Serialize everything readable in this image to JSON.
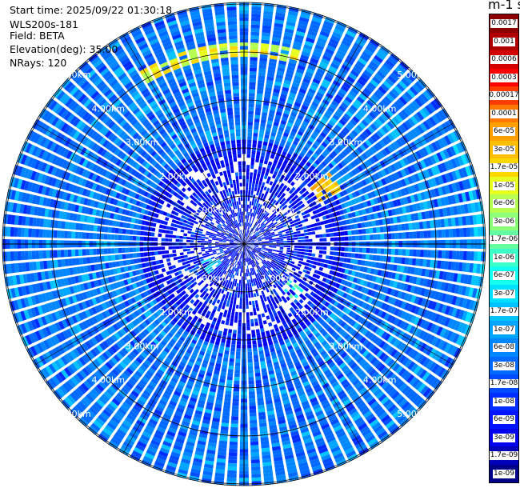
{
  "header": {
    "start_time": "Start time: 2025/09/22 01:30:18",
    "instrument": "WLS200s-181",
    "field": "Field: BETA",
    "elevation": "Elevation(deg): 35.00",
    "nrays": "NRays: 120"
  },
  "chart_data": {
    "type": "ppi-polar-heatmap",
    "field": "BETA",
    "elevation_deg": 35.0,
    "n_rays": 120,
    "max_range_km": 5.4,
    "range_rings_km": [
      1,
      2,
      3,
      4,
      5
    ],
    "range_ring_labels": [
      "1.00km",
      "2.00km",
      "3.00km",
      "4.00km",
      "5.00km"
    ],
    "colorbar": {
      "title": "m-1 sr-1",
      "labels": [
        "0.0017",
        "0.001",
        "0.0006",
        "0.0003",
        "0.00017",
        "0.0001",
        "6e-05",
        "3e-05",
        "1.7e-05",
        "1e-05",
        "6e-06",
        "3e-06",
        "1.7e-06",
        "1e-06",
        "6e-07",
        "3e-07",
        "1.7e-07",
        "1e-07",
        "6e-08",
        "3e-08",
        "1.7e-08",
        "1e-08",
        "6e-09",
        "3e-09",
        "1.7e-09",
        "1e-09"
      ],
      "colors": [
        "#8b0000",
        "#b00000",
        "#d40000",
        "#ff0000",
        "#ff3c00",
        "#ff7800",
        "#ff9f00",
        "#ffbe00",
        "#ffd700",
        "#e6ff1e",
        "#b4ff50",
        "#8cff78",
        "#64ffa0",
        "#3cffc8",
        "#14fff0",
        "#00e1ff",
        "#00c3ff",
        "#00a5ff",
        "#0087ff",
        "#0069ff",
        "#004bff",
        "#002dff",
        "#0014ff",
        "#0000ee",
        "#0000bb",
        "#000088"
      ]
    },
    "features": [
      {
        "azimuth_deg": [
          -30,
          15
        ],
        "range_km": [
          3.9,
          4.2
        ],
        "level": "1e-05"
      },
      {
        "azimuth_deg": [
          50,
          62
        ],
        "range_km": [
          1.8,
          2.3
        ],
        "level": "3e-05"
      },
      {
        "azimuth_deg": [
          65,
          112
        ],
        "range_km": [
          4.8,
          5.2
        ],
        "level": "1.7e-07"
      },
      {
        "azimuth_deg": [
          128,
          138
        ],
        "range_km": [
          1.2,
          1.6
        ],
        "level": "1e-06"
      },
      {
        "azimuth_deg": [
          230,
          250
        ],
        "range_km": [
          0.6,
          1.0
        ],
        "level": "1.7e-07"
      }
    ]
  }
}
